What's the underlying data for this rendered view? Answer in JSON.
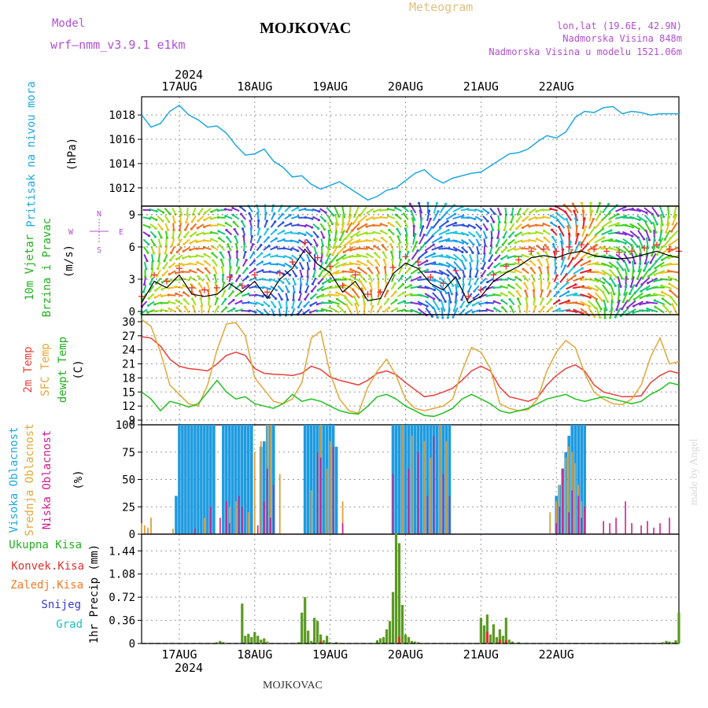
{
  "header": {
    "model_label": "Model",
    "model_name": "wrf—nmm_v3.9.1 e1km",
    "station": "MOJKOVAC",
    "product": "Meteogram",
    "coords": "lon,lat (19.6E, 42.9N)",
    "elevation": "Nadmorska Visina 848m",
    "model_elevation": "Nadmorska Visina u modelu 1521.06m"
  },
  "footer": {
    "station": "MOJKOVAC",
    "credit": "made by Angel"
  },
  "colors": {
    "pressure": "#1ea8e0",
    "temp2m": "#e8403a",
    "sfc_temp": "#e0a838",
    "dewpt": "#22c020",
    "high_cloud": "#1e9be0",
    "mid_cloud": "#d8a040",
    "low_cloud": "#d0208a",
    "precip_total": "#5a9a22",
    "precip_conv": "#e03030",
    "grid": "#999999"
  },
  "x_axis": {
    "year": "2024",
    "days": [
      "17AUG",
      "18AUG",
      "19AUG",
      "20AUG",
      "21AUG",
      "22AUG"
    ]
  },
  "chart_data": [
    {
      "type": "line",
      "id": "pressure",
      "ylabel_lines": [
        "Pritisak na nivou mora",
        "(hPa)"
      ],
      "yticks": [
        "1012",
        "1014",
        "1016",
        "1018"
      ],
      "ylim": [
        1010.5,
        1019.5
      ],
      "x_unit": "hours from 16AUG 12UTC",
      "series": [
        {
          "x": [
            0,
            3,
            6,
            9,
            12,
            15,
            18,
            21,
            24,
            27,
            30,
            33,
            36,
            39,
            42,
            45,
            48,
            51,
            54,
            57,
            60,
            63,
            66,
            69,
            72,
            75,
            78,
            81,
            84,
            87,
            90,
            93,
            96,
            99,
            102,
            105,
            108,
            111,
            114,
            117,
            120,
            123,
            126,
            129,
            132,
            135,
            138,
            141,
            144,
            147,
            150,
            153,
            156,
            159,
            162,
            165,
            168,
            171
          ],
          "values": [
            1018.0,
            1017.0,
            1017.3,
            1018.3,
            1018.8,
            1018.0,
            1017.6,
            1017.0,
            1017.1,
            1016.5,
            1015.5,
            1014.7,
            1014.8,
            1015.2,
            1014.2,
            1013.7,
            1012.9,
            1013.0,
            1012.3,
            1011.9,
            1012.2,
            1012.5,
            1012.0,
            1011.5,
            1011.0,
            1011.3,
            1011.8,
            1012.0,
            1012.6,
            1013.2,
            1013.5,
            1012.8,
            1012.4,
            1012.8,
            1013.0,
            1013.2,
            1013.3,
            1013.8,
            1014.3,
            1014.8,
            1014.9,
            1015.2,
            1015.8,
            1016.3,
            1016.1,
            1016.6,
            1017.8,
            1018.3,
            1018.2,
            1018.6,
            1018.7,
            1018.1,
            1018.3,
            1018.2,
            1018.0,
            1018.1,
            1018.1,
            1018.1
          ]
        }
      ]
    },
    {
      "type": "vector",
      "id": "wind",
      "ylabel_lines": [
        "10m Vjetar",
        "Brzina i Pravac",
        "(m/s)"
      ],
      "compass": {
        "n": "N",
        "s": "S",
        "w": "W",
        "e": "E"
      },
      "yticks": [
        "0",
        "3",
        "6",
        "9"
      ],
      "ylim": [
        -0.3,
        9.8
      ],
      "series": [
        {
          "name": "speed",
          "x": [
            0,
            4,
            8,
            12,
            16,
            20,
            24,
            28,
            32,
            36,
            40,
            44,
            48,
            52,
            56,
            60,
            64,
            68,
            72,
            76,
            80,
            84,
            88,
            92,
            96,
            100,
            104,
            108,
            112,
            116,
            120,
            124,
            128,
            132,
            136,
            140,
            144,
            148,
            152,
            156,
            160,
            164,
            168,
            171
          ],
          "values": [
            0.8,
            2.8,
            2.2,
            3.4,
            1.6,
            1.4,
            1.6,
            2.6,
            1.8,
            2.8,
            1.2,
            3.0,
            4.0,
            5.8,
            4.4,
            3.6,
            1.8,
            2.8,
            1.0,
            1.2,
            3.5,
            4.5,
            4.0,
            2.6,
            2.0,
            3.2,
            0.8,
            1.4,
            2.8,
            3.6,
            4.2,
            5.0,
            5.2,
            5.0,
            5.4,
            5.6,
            5.2,
            5.0,
            4.9,
            5.0,
            5.3,
            5.6,
            5.2,
            5.0
          ]
        }
      ]
    },
    {
      "type": "line",
      "id": "temperature",
      "ylabel_lines": [
        "2m Temp",
        "SFC Temp",
        "dewpt Temp",
        "(C)"
      ],
      "yticks": [
        "9",
        "12",
        "15",
        "18",
        "21",
        "24",
        "27",
        "30"
      ],
      "ylim": [
        8,
        31.5
      ],
      "series": [
        {
          "name": "2m Temp",
          "x": [
            0,
            3,
            6,
            9,
            12,
            15,
            18,
            21,
            24,
            27,
            30,
            33,
            36,
            39,
            42,
            45,
            48,
            51,
            54,
            57,
            60,
            63,
            66,
            69,
            72,
            75,
            78,
            81,
            84,
            87,
            90,
            93,
            96,
            99,
            102,
            105,
            108,
            111,
            114,
            117,
            120,
            123,
            126,
            129,
            132,
            135,
            138,
            141,
            144,
            147,
            150,
            153,
            156,
            159,
            162,
            165,
            168,
            171
          ],
          "values": [
            26.8,
            26.5,
            24.8,
            22.0,
            20.5,
            20.0,
            19.8,
            19.5,
            21.0,
            22.8,
            23.5,
            22.8,
            20.0,
            19.0,
            18.8,
            18.7,
            18.5,
            19.0,
            20.5,
            19.8,
            18.2,
            17.5,
            17.0,
            16.5,
            17.5,
            19.0,
            19.5,
            18.7,
            17.0,
            15.5,
            14.0,
            14.3,
            15.0,
            15.8,
            17.5,
            19.5,
            20.5,
            19.5,
            16.0,
            14.0,
            13.5,
            13.0,
            13.8,
            16.5,
            18.5,
            20.0,
            20.8,
            19.5,
            16.5,
            15.0,
            14.5,
            14.0,
            14.0,
            14.2,
            17.0,
            18.5,
            19.5,
            19.0
          ]
        },
        {
          "name": "SFC Temp",
          "x": [
            0,
            3,
            6,
            9,
            12,
            15,
            18,
            21,
            24,
            27,
            30,
            33,
            36,
            39,
            42,
            45,
            48,
            51,
            54,
            57,
            60,
            63,
            66,
            69,
            72,
            75,
            78,
            81,
            84,
            87,
            90,
            93,
            96,
            99,
            102,
            105,
            108,
            111,
            114,
            117,
            120,
            123,
            126,
            129,
            132,
            135,
            138,
            141,
            144,
            147,
            150,
            153,
            156,
            159,
            162,
            165,
            168,
            171
          ],
          "values": [
            30.5,
            29.0,
            23.5,
            16.5,
            14.5,
            12.5,
            12.0,
            16.5,
            24.0,
            29.5,
            29.8,
            27.0,
            18.0,
            15.5,
            13.0,
            12.5,
            13.5,
            17.0,
            26.5,
            28.0,
            19.0,
            13.5,
            11.0,
            10.5,
            16.0,
            19.5,
            22.0,
            18.5,
            13.5,
            11.5,
            11.0,
            11.5,
            12.0,
            13.5,
            19.5,
            24.5,
            23.5,
            20.0,
            12.5,
            11.5,
            11.0,
            11.2,
            13.5,
            19.5,
            23.5,
            26.0,
            24.5,
            19.0,
            15.0,
            13.5,
            12.5,
            12.3,
            13.5,
            16.5,
            22.5,
            26.5,
            21.0,
            21.5
          ]
        },
        {
          "name": "dewpt Temp",
          "x": [
            0,
            3,
            6,
            9,
            12,
            15,
            18,
            21,
            24,
            27,
            30,
            33,
            36,
            39,
            42,
            45,
            48,
            51,
            54,
            57,
            60,
            63,
            66,
            69,
            72,
            75,
            78,
            81,
            84,
            87,
            90,
            93,
            96,
            99,
            102,
            105,
            108,
            111,
            114,
            117,
            120,
            123,
            126,
            129,
            132,
            135,
            138,
            141,
            144,
            147,
            150,
            153,
            156,
            159,
            162,
            165,
            168,
            171
          ],
          "values": [
            15.0,
            13.5,
            11.0,
            13.0,
            12.5,
            11.8,
            12.5,
            15.0,
            17.5,
            15.0,
            13.5,
            14.0,
            12.5,
            12.0,
            11.5,
            12.5,
            14.5,
            13.0,
            13.5,
            13.0,
            12.0,
            11.0,
            10.5,
            10.3,
            12.0,
            14.0,
            14.5,
            13.5,
            12.0,
            11.0,
            10.0,
            9.8,
            10.5,
            11.5,
            13.5,
            14.5,
            13.5,
            12.5,
            11.0,
            10.5,
            11.0,
            11.5,
            12.5,
            13.5,
            14.0,
            14.5,
            13.5,
            13.0,
            13.5,
            14.0,
            13.5,
            13.0,
            12.5,
            13.0,
            14.5,
            15.5,
            17.0,
            16.5
          ]
        }
      ]
    },
    {
      "type": "bar",
      "id": "cloud",
      "ylabel_lines": [
        "Visoka Oblacnost",
        "Srednja Oblacnost",
        "Niska Oblacnost",
        "(%)"
      ],
      "yticks": [
        "0",
        "25",
        "50",
        "75",
        "100"
      ],
      "ylim": [
        0,
        100
      ],
      "high_x": [
        11,
        12,
        13,
        14,
        15,
        16,
        17,
        18,
        19,
        20,
        21,
        22,
        23,
        26,
        27,
        28,
        29,
        30,
        31,
        32,
        33,
        34,
        35,
        38,
        39,
        40,
        41,
        42,
        52,
        53,
        54,
        55,
        56,
        57,
        58,
        59,
        60,
        61,
        62,
        80,
        81,
        82,
        83,
        84,
        85,
        86,
        87,
        88,
        89,
        90,
        91,
        92,
        93,
        94,
        95,
        96,
        97,
        98,
        132,
        133,
        134,
        135,
        136,
        137,
        138,
        139,
        140,
        141
      ],
      "high_v": [
        35,
        100,
        100,
        100,
        100,
        100,
        100,
        100,
        100,
        100,
        100,
        100,
        100,
        100,
        100,
        100,
        100,
        100,
        100,
        100,
        100,
        100,
        100,
        80,
        85,
        100,
        100,
        100,
        100,
        100,
        100,
        100,
        100,
        100,
        100,
        100,
        100,
        100,
        80,
        100,
        100,
        100,
        100,
        100,
        100,
        100,
        100,
        100,
        100,
        100,
        100,
        100,
        100,
        100,
        100,
        100,
        100,
        100,
        35,
        45,
        60,
        75,
        90,
        100,
        100,
        100,
        100,
        100
      ],
      "mid_x": [
        0,
        1,
        2,
        3,
        10,
        20,
        28,
        30,
        34,
        36,
        38,
        40,
        41,
        44,
        54,
        56,
        57,
        59,
        60,
        61,
        64,
        83,
        86,
        90,
        92,
        95,
        97,
        130,
        132,
        133,
        134,
        135,
        136,
        137,
        138,
        139,
        140,
        141
      ],
      "mid_v": [
        10,
        8,
        6,
        15,
        5,
        15,
        25,
        30,
        20,
        75,
        85,
        100,
        100,
        55,
        40,
        75,
        100,
        60,
        85,
        80,
        30,
        100,
        90,
        85,
        70,
        100,
        85,
        20,
        30,
        45,
        55,
        70,
        80,
        75,
        65,
        45,
        30,
        20
      ],
      "low_x": [
        17,
        22,
        25,
        27,
        28,
        31,
        32,
        37,
        39,
        40,
        41,
        42,
        56,
        57,
        61,
        64,
        80,
        85,
        88,
        91,
        93,
        96,
        98,
        132,
        133,
        134,
        136,
        137,
        139,
        140,
        141,
        147,
        149,
        151,
        154,
        156,
        159,
        161,
        163,
        165,
        168
      ],
      "low_v": [
        5,
        25,
        15,
        30,
        10,
        35,
        25,
        8,
        30,
        60,
        15,
        45,
        75,
        70,
        80,
        10,
        55,
        60,
        75,
        35,
        90,
        55,
        35,
        10,
        25,
        60,
        20,
        40,
        35,
        15,
        25,
        12,
        10,
        15,
        30,
        10,
        8,
        12,
        6,
        10,
        15
      ]
    },
    {
      "type": "bar",
      "id": "precip",
      "ylabel_lines": [
        "1hr Precip (mm)"
      ],
      "legend": [
        {
          "name": "Ukupna Kisa",
          "color": "#22b020"
        },
        {
          "name": "Konvek.Kisa",
          "color": "#e03030"
        },
        {
          "name": "Zaledj.Kisa",
          "color": "#f07a28"
        },
        {
          "name": "Snijeg",
          "color": "#3838d0"
        },
        {
          "name": "Grad",
          "color": "#20c0c0"
        }
      ],
      "yticks": [
        "0",
        "0.36",
        "0.72",
        "1.08",
        "1.44"
      ],
      "ylim": [
        0,
        1.7
      ],
      "x": [
        24,
        25,
        26,
        32,
        33,
        34,
        35,
        36,
        37,
        38,
        39,
        40,
        50,
        51,
        52,
        53,
        54,
        55,
        56,
        57,
        58,
        59,
        60,
        62,
        75,
        76,
        77,
        78,
        79,
        80,
        81,
        82,
        83,
        84,
        85,
        86,
        87,
        88,
        108,
        109,
        110,
        111,
        112,
        113,
        114,
        115,
        116,
        117,
        118,
        120,
        166,
        167,
        168,
        169,
        170,
        171
      ],
      "values": [
        0.02,
        0.04,
        0.02,
        0.62,
        0.12,
        0.15,
        0.1,
        0.18,
        0.12,
        0.06,
        0.08,
        0.03,
        0.02,
        0.48,
        0.72,
        0.2,
        0.04,
        0.4,
        0.35,
        0.14,
        0.05,
        0.12,
        0.02,
        0.02,
        0.05,
        0.08,
        0.1,
        0.22,
        0.35,
        0.8,
        1.72,
        1.56,
        0.6,
        0.14,
        0.1,
        0.04,
        0.03,
        0.02,
        0.4,
        0.28,
        0.45,
        0.14,
        0.3,
        0.1,
        0.22,
        0.12,
        0.4,
        0.06,
        0.03,
        0.02,
        0.02,
        0.04,
        0.03,
        0.02,
        0.05,
        0.48
      ],
      "conv_x": [
        57,
        82,
        110,
        114,
        116
      ],
      "conv_v": [
        0.04,
        0.1,
        0.18,
        0.06,
        0.05
      ]
    }
  ]
}
